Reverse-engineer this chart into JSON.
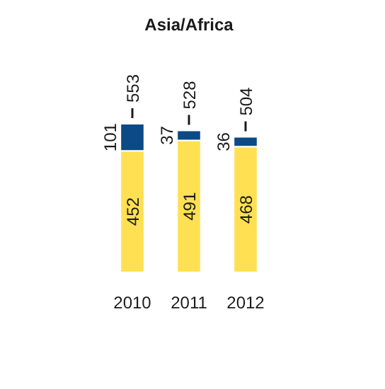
{
  "chart_data": {
    "type": "bar",
    "title": "Asia/Africa",
    "categories": [
      "2010",
      "2011",
      "2012"
    ],
    "stacked": true,
    "data_labels": true,
    "series": [
      {
        "color": "#ffe052",
        "values": [
          452,
          491,
          468
        ]
      },
      {
        "color": "#0b4a84",
        "values": [
          101,
          37,
          36
        ]
      }
    ],
    "totals": [
      "553",
      "528",
      "504"
    ]
  }
}
